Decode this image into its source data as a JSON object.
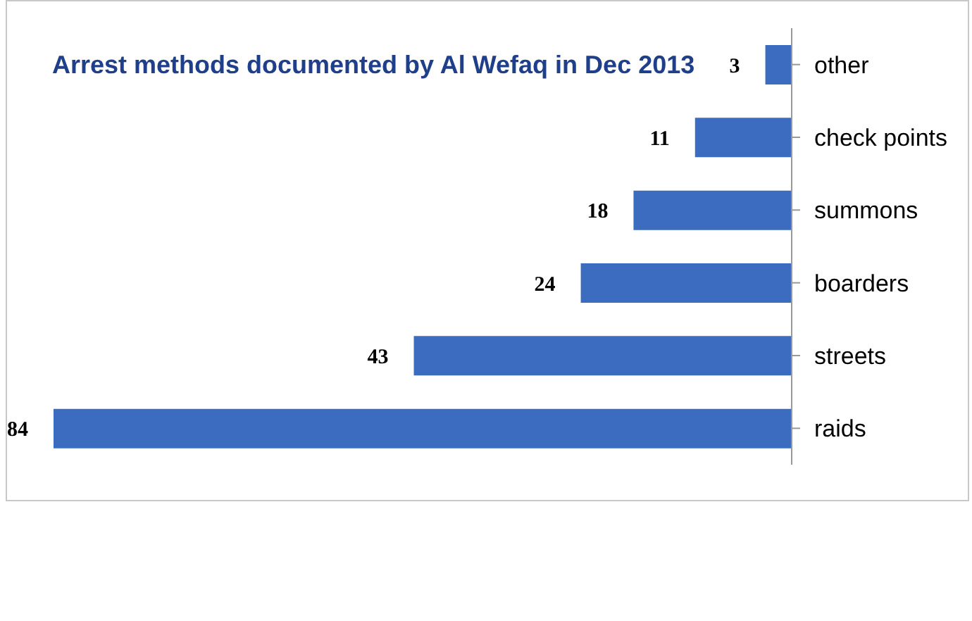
{
  "chart_data": {
    "type": "bar",
    "orientation": "horizontal",
    "title": "Arrest methods documented by Al Wefaq in Dec 2013",
    "categories": [
      "other",
      "check points",
      "summons",
      "boarders",
      "streets",
      "raids"
    ],
    "values": [
      3,
      11,
      18,
      24,
      43,
      84
    ],
    "color": "#3b6cc0",
    "data_labels": true
  }
}
